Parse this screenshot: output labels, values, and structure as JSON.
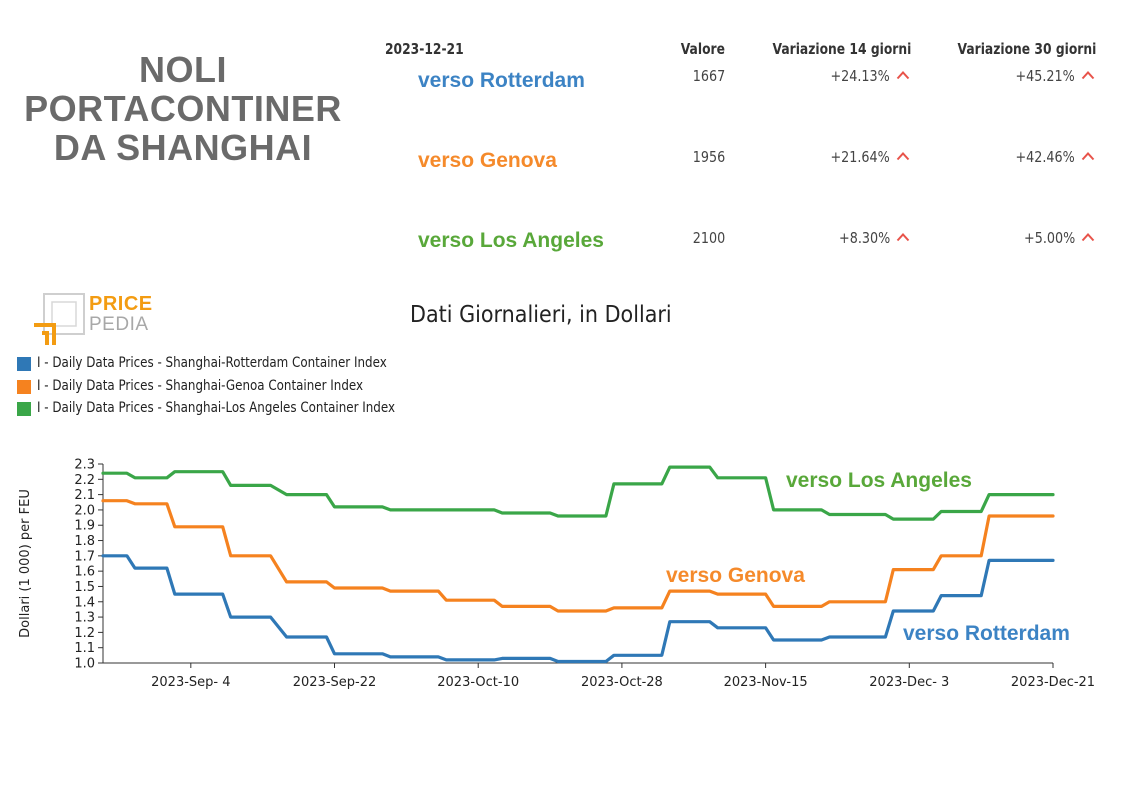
{
  "headline": {
    "lines": [
      "NOLI",
      "PORTACONTINER",
      "DA SHANGHAI"
    ]
  },
  "table": {
    "date": "2023-12-21",
    "col_value": "Valore",
    "col_var14": "Variazione 14 giorni",
    "col_var30": "Variazione 30 giorni",
    "rows": [
      {
        "label": "verso Rotterdam",
        "color": "#3c83c4",
        "value": "1667",
        "var14": "+24.13%",
        "var30": "+45.21%"
      },
      {
        "label": "verso Genova",
        "color": "#f58a2b",
        "value": "1956",
        "var14": "+21.64%",
        "var30": "+42.46%"
      },
      {
        "label": "verso Los Angeles",
        "color": "#59a83a",
        "value": "2100",
        "var14": "+8.30%",
        "var30": "+5.00%"
      }
    ],
    "up_color": "#e8534a"
  },
  "logo": {
    "price": "PRICE",
    "pedia": "PEDIA"
  },
  "chart_data": {
    "type": "line",
    "title": "Dati Giornalieri, in Dollari",
    "ylabel": "Dollari (1 000) per FEU",
    "ylim": [
      1.0,
      2.3
    ],
    "yticks": [
      "1.0",
      "1.1",
      "1.2",
      "1.3",
      "1.4",
      "1.5",
      "1.6",
      "1.7",
      "1.8",
      "1.9",
      "2.0",
      "2.1",
      "2.2",
      "2.3"
    ],
    "xlim": [
      "2023-Aug-24",
      "2023-Dec-21"
    ],
    "xticks": [
      "2023-Sep- 4",
      "2023-Sep-22",
      "2023-Oct-10",
      "2023-Oct-28",
      "2023-Nov-15",
      "2023-Dec- 3",
      "2023-Dec-21"
    ],
    "grid": false,
    "legend_position": "top-left",
    "series": [
      {
        "name": "I - Daily Data Prices - Shanghai-Rotterdam Container Index",
        "annotation": "verso Rotterdam",
        "color": "#2f78b6",
        "points": [
          [
            "2023-Aug-24",
            1.7
          ],
          [
            "2023-Aug-27",
            1.7
          ],
          [
            "2023-Aug-28",
            1.62
          ],
          [
            "2023-Sep-1",
            1.62
          ],
          [
            "2023-Sep-2",
            1.45
          ],
          [
            "2023-Sep-8",
            1.45
          ],
          [
            "2023-Sep-9",
            1.3
          ],
          [
            "2023-Sep-14",
            1.3
          ],
          [
            "2023-Sep-16",
            1.17
          ],
          [
            "2023-Sep-21",
            1.17
          ],
          [
            "2023-Sep-22",
            1.06
          ],
          [
            "2023-Sep-28",
            1.06
          ],
          [
            "2023-Sep-29",
            1.04
          ],
          [
            "2023-Oct-5",
            1.04
          ],
          [
            "2023-Oct-6",
            1.02
          ],
          [
            "2023-Oct-12",
            1.02
          ],
          [
            "2023-Oct-13",
            1.03
          ],
          [
            "2023-Oct-19",
            1.03
          ],
          [
            "2023-Oct-20",
            1.01
          ],
          [
            "2023-Oct-26",
            1.01
          ],
          [
            "2023-Oct-27",
            1.05
          ],
          [
            "2023-Nov-2",
            1.05
          ],
          [
            "2023-Nov-3",
            1.27
          ],
          [
            "2023-Nov-8",
            1.27
          ],
          [
            "2023-Nov-9",
            1.23
          ],
          [
            "2023-Nov-15",
            1.23
          ],
          [
            "2023-Nov-16",
            1.15
          ],
          [
            "2023-Nov-22",
            1.15
          ],
          [
            "2023-Nov-23",
            1.17
          ],
          [
            "2023-Nov-30",
            1.17
          ],
          [
            "2023-Dec-1",
            1.34
          ],
          [
            "2023-Dec-6",
            1.34
          ],
          [
            "2023-Dec-7",
            1.44
          ],
          [
            "2023-Dec-12",
            1.44
          ],
          [
            "2023-Dec-13",
            1.67
          ],
          [
            "2023-Dec-21",
            1.67
          ]
        ]
      },
      {
        "name": "I - Daily Data Prices - Shanghai-Genoa Container Index",
        "annotation": "verso Genova",
        "color": "#f5821f",
        "points": [
          [
            "2023-Aug-24",
            2.06
          ],
          [
            "2023-Aug-27",
            2.06
          ],
          [
            "2023-Aug-28",
            2.04
          ],
          [
            "2023-Sep-1",
            2.04
          ],
          [
            "2023-Sep-2",
            1.89
          ],
          [
            "2023-Sep-8",
            1.89
          ],
          [
            "2023-Sep-9",
            1.7
          ],
          [
            "2023-Sep-14",
            1.7
          ],
          [
            "2023-Sep-16",
            1.53
          ],
          [
            "2023-Sep-21",
            1.53
          ],
          [
            "2023-Sep-22",
            1.49
          ],
          [
            "2023-Sep-28",
            1.49
          ],
          [
            "2023-Sep-29",
            1.47
          ],
          [
            "2023-Oct-5",
            1.47
          ],
          [
            "2023-Oct-6",
            1.41
          ],
          [
            "2023-Oct-12",
            1.41
          ],
          [
            "2023-Oct-13",
            1.37
          ],
          [
            "2023-Oct-19",
            1.37
          ],
          [
            "2023-Oct-20",
            1.34
          ],
          [
            "2023-Oct-26",
            1.34
          ],
          [
            "2023-Oct-27",
            1.36
          ],
          [
            "2023-Nov-2",
            1.36
          ],
          [
            "2023-Nov-3",
            1.47
          ],
          [
            "2023-Nov-8",
            1.47
          ],
          [
            "2023-Nov-9",
            1.45
          ],
          [
            "2023-Nov-15",
            1.45
          ],
          [
            "2023-Nov-16",
            1.37
          ],
          [
            "2023-Nov-22",
            1.37
          ],
          [
            "2023-Nov-23",
            1.4
          ],
          [
            "2023-Nov-30",
            1.4
          ],
          [
            "2023-Dec-1",
            1.61
          ],
          [
            "2023-Dec-6",
            1.61
          ],
          [
            "2023-Dec-7",
            1.7
          ],
          [
            "2023-Dec-12",
            1.7
          ],
          [
            "2023-Dec-13",
            1.96
          ],
          [
            "2023-Dec-21",
            1.96
          ]
        ]
      },
      {
        "name": "I - Daily Data Prices - Shanghai-Los Angeles Container Index",
        "annotation": "verso Los Angeles",
        "color": "#3aa648",
        "points": [
          [
            "2023-Aug-24",
            2.24
          ],
          [
            "2023-Aug-27",
            2.24
          ],
          [
            "2023-Aug-28",
            2.21
          ],
          [
            "2023-Sep-1",
            2.21
          ],
          [
            "2023-Sep-2",
            2.25
          ],
          [
            "2023-Sep-8",
            2.25
          ],
          [
            "2023-Sep-9",
            2.16
          ],
          [
            "2023-Sep-14",
            2.16
          ],
          [
            "2023-Sep-16",
            2.1
          ],
          [
            "2023-Sep-21",
            2.1
          ],
          [
            "2023-Sep-22",
            2.02
          ],
          [
            "2023-Sep-28",
            2.02
          ],
          [
            "2023-Sep-29",
            2.0
          ],
          [
            "2023-Oct-5",
            2.0
          ],
          [
            "2023-Oct-6",
            2.0
          ],
          [
            "2023-Oct-12",
            2.0
          ],
          [
            "2023-Oct-13",
            1.98
          ],
          [
            "2023-Oct-19",
            1.98
          ],
          [
            "2023-Oct-20",
            1.96
          ],
          [
            "2023-Oct-26",
            1.96
          ],
          [
            "2023-Oct-27",
            2.17
          ],
          [
            "2023-Nov-2",
            2.17
          ],
          [
            "2023-Nov-3",
            2.28
          ],
          [
            "2023-Nov-8",
            2.28
          ],
          [
            "2023-Nov-9",
            2.21
          ],
          [
            "2023-Nov-15",
            2.21
          ],
          [
            "2023-Nov-16",
            2.0
          ],
          [
            "2023-Nov-22",
            2.0
          ],
          [
            "2023-Nov-23",
            1.97
          ],
          [
            "2023-Nov-30",
            1.97
          ],
          [
            "2023-Dec-1",
            1.94
          ],
          [
            "2023-Dec-6",
            1.94
          ],
          [
            "2023-Dec-7",
            1.99
          ],
          [
            "2023-Dec-12",
            1.99
          ],
          [
            "2023-Dec-13",
            2.1
          ],
          [
            "2023-Dec-21",
            2.1
          ]
        ]
      }
    ]
  }
}
